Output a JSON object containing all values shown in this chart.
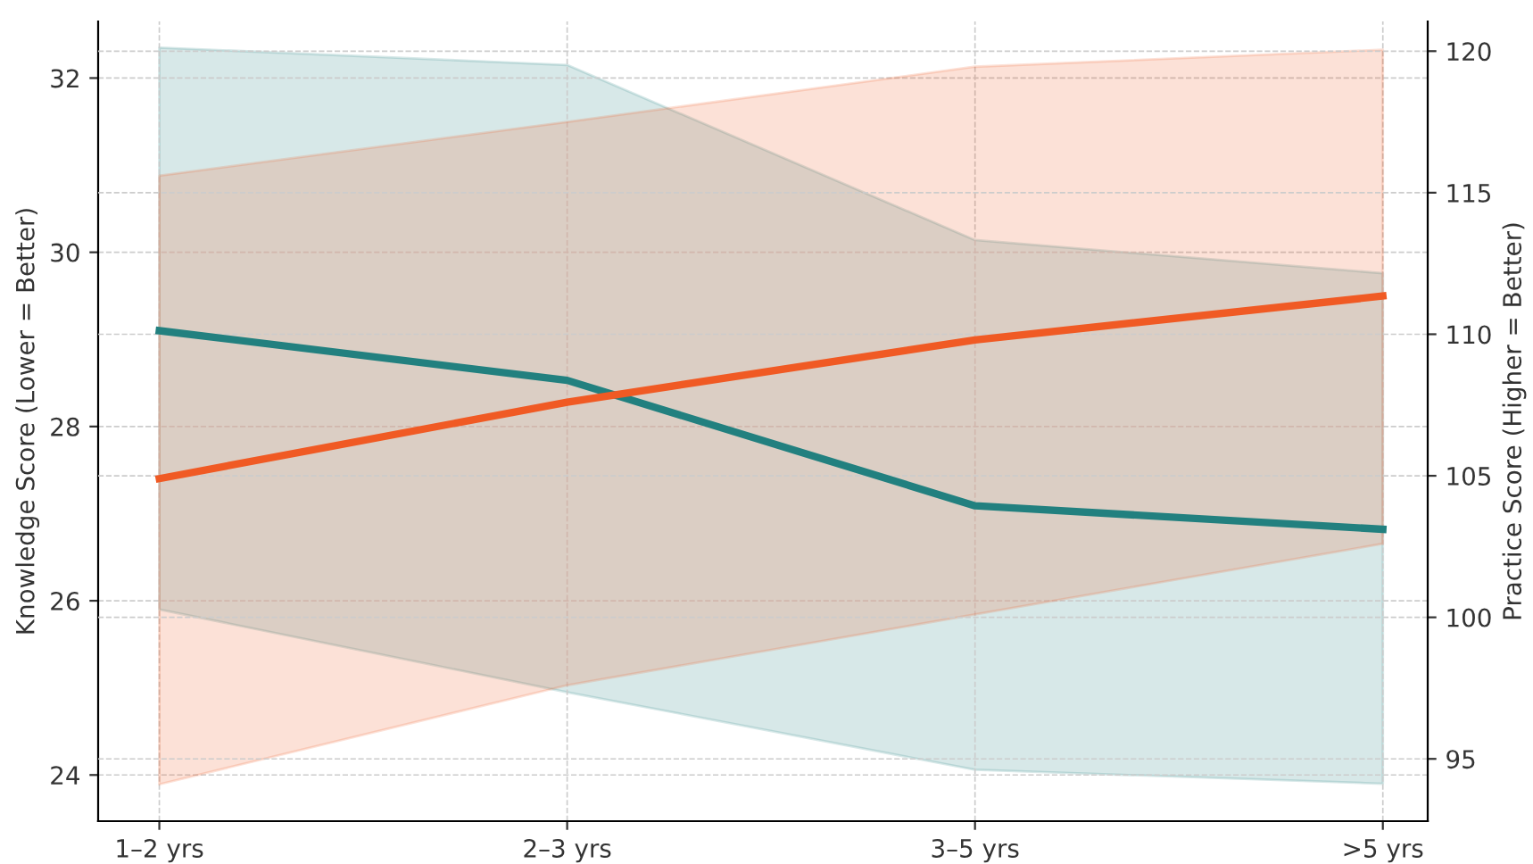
{
  "chart_data": {
    "type": "line",
    "xlabel": null,
    "ylabel": "Knowledge Score (Lower = Better)",
    "y2label": "Practice Score (Higher = Better)",
    "categories": [
      "1–2 yrs",
      "2–3 yrs",
      "3–5 yrs",
      ">5 yrs"
    ],
    "series": [
      {
        "color": "#22807f",
        "values": [
          29.1,
          28.53,
          27.09,
          26.82
        ],
        "lower": [
          25.9,
          24.95,
          24.06,
          23.9
        ],
        "upper": [
          32.35,
          32.15,
          30.14,
          29.76
        ]
      },
      {
        "color": "#f05a24",
        "axis": "y2",
        "values": [
          104.9,
          107.6,
          109.8,
          111.35
        ],
        "lower": [
          94.1,
          97.6,
          100.1,
          102.6
        ],
        "upper": [
          115.6,
          117.5,
          119.45,
          120.05
        ]
      }
    ],
    "ylim": [
      23.47,
      32.65
    ],
    "yticks": [
      24,
      26,
      28,
      30,
      32
    ],
    "y2lim": [
      92.8,
      121.05
    ],
    "y2ticks": [
      95,
      100,
      105,
      110,
      115,
      120
    ],
    "grid": true,
    "line_style": "solid",
    "marker": "none"
  }
}
